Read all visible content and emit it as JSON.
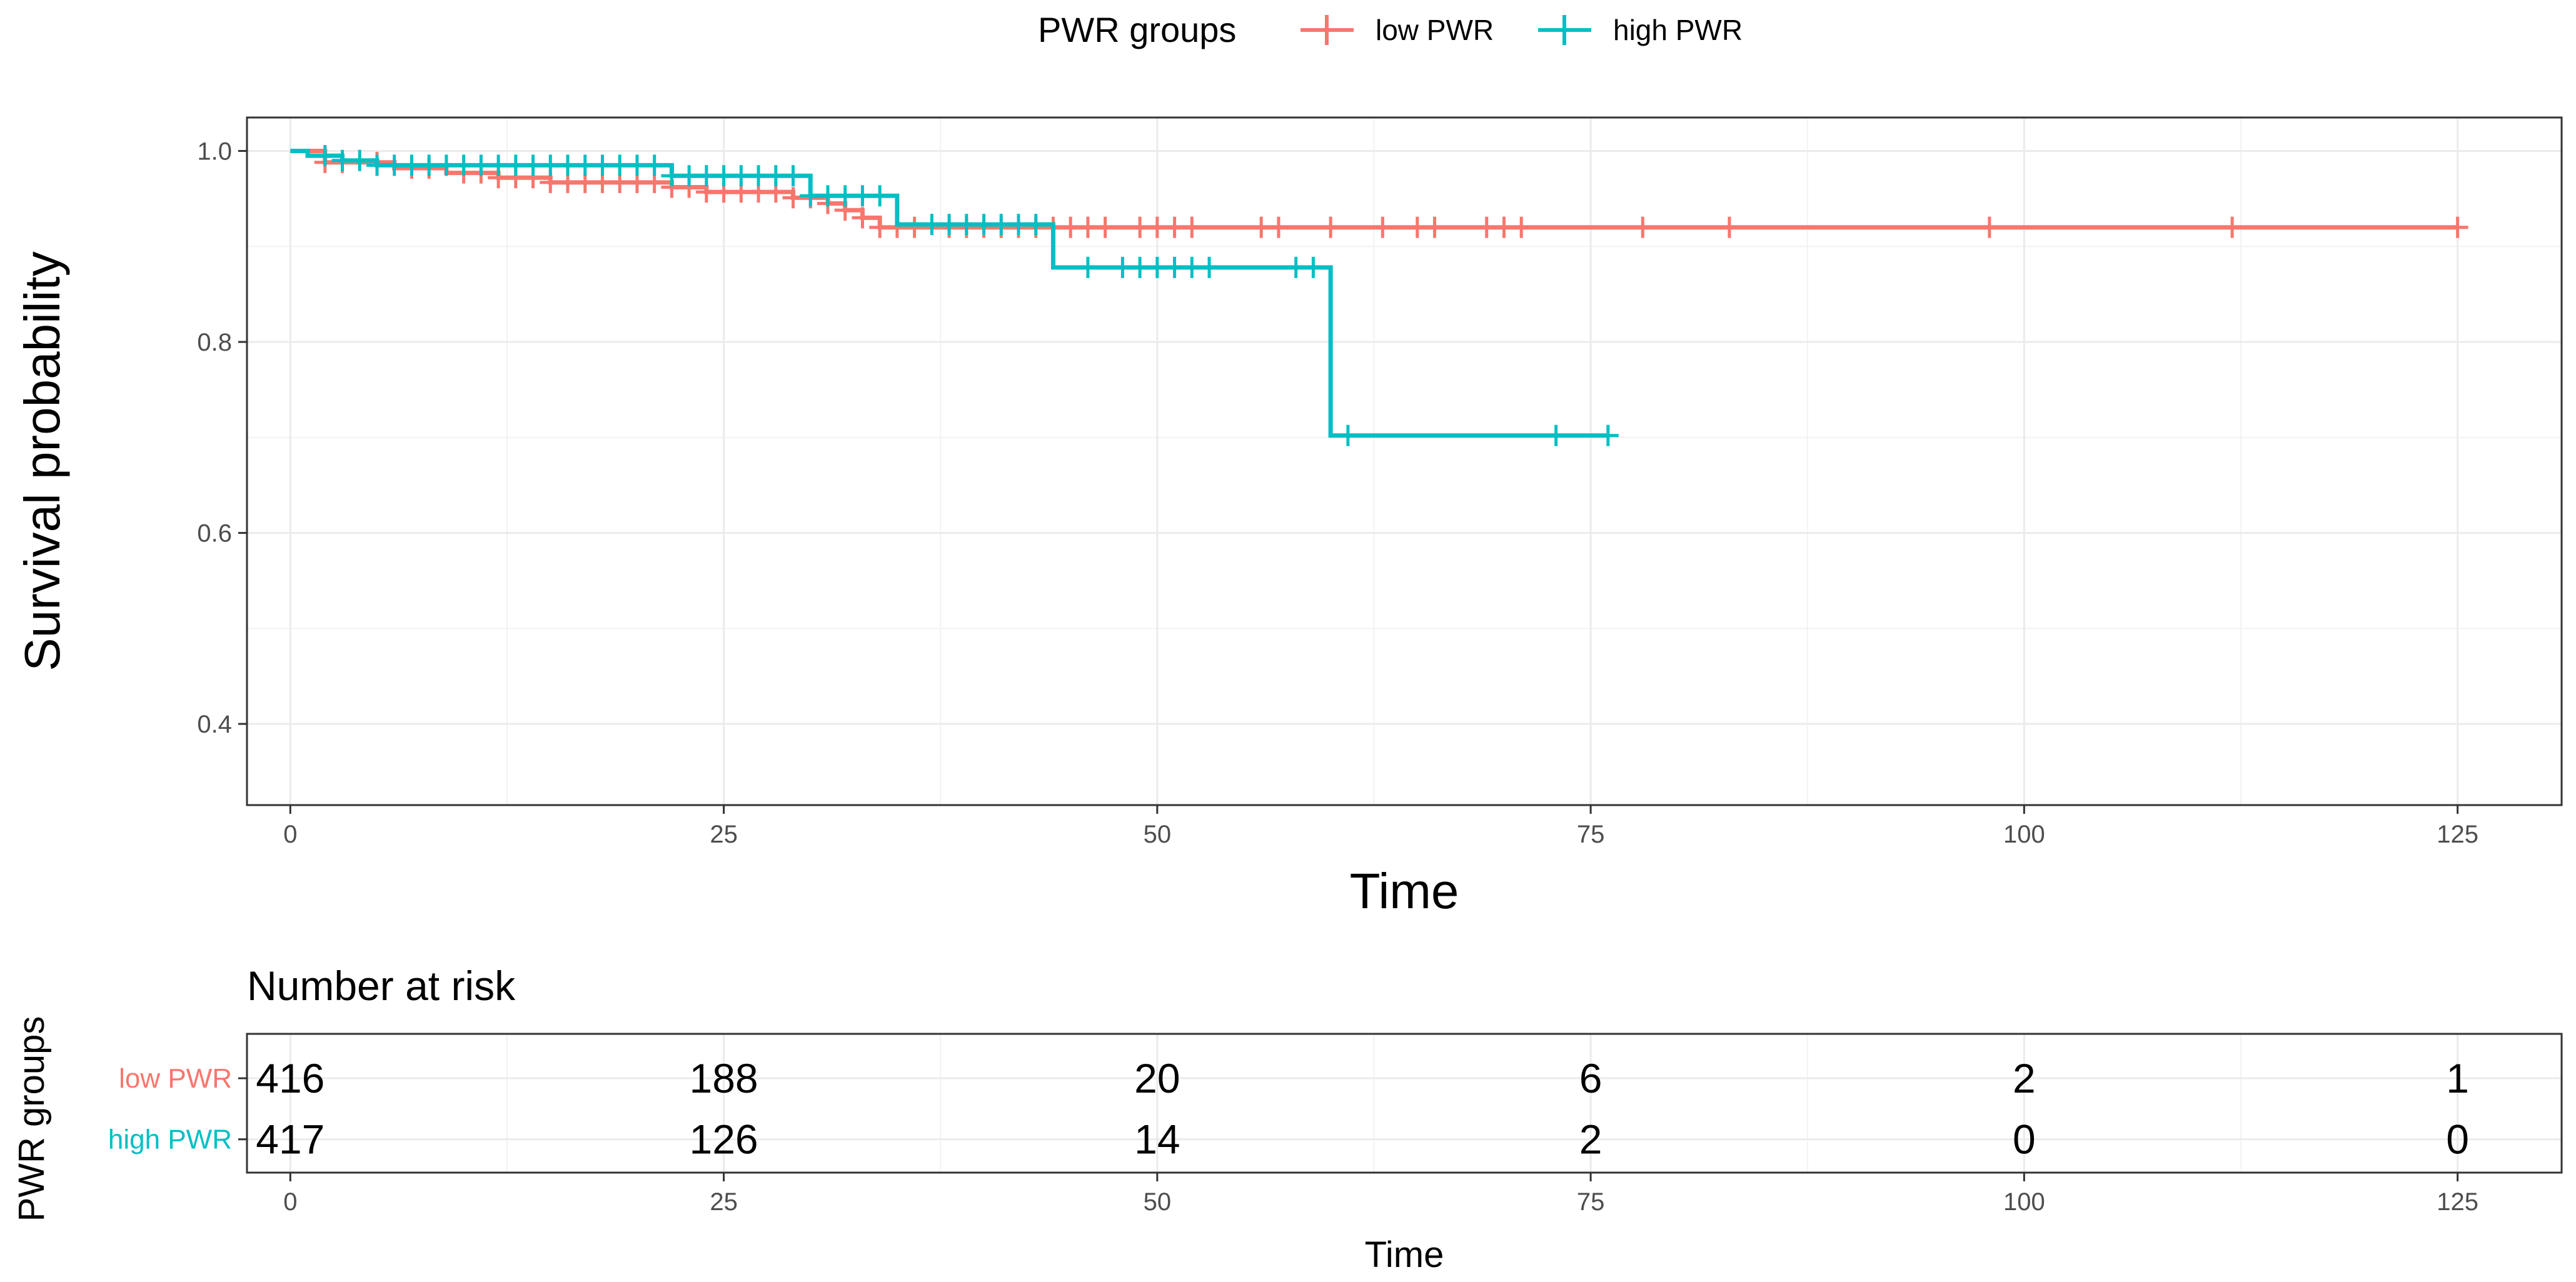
{
  "chart_data": {
    "type": "line",
    "subtype": "kaplan-meier",
    "legend": {
      "title": "PWR groups",
      "position": "top",
      "entries": [
        {
          "label": "low PWR",
          "color": "#F8766D"
        },
        {
          "label": "high PWR",
          "color": "#00BFC4"
        }
      ]
    },
    "xlabel": "Time",
    "ylabel": "Survival probability",
    "xlim": [
      -2.5,
      131
    ],
    "ylim": [
      0.315,
      1.035
    ],
    "xticks": [
      0,
      25,
      50,
      75,
      100,
      125
    ],
    "xtick_labels": [
      "0",
      "25",
      "50",
      "75",
      "100",
      "125"
    ],
    "yticks": [
      0.4,
      0.6,
      0.8,
      1.0
    ],
    "ytick_labels": [
      "0.4",
      "0.6",
      "0.8",
      "1.0"
    ],
    "grid": true,
    "series": [
      {
        "name": "low PWR",
        "color": "#F8766D",
        "steps": [
          {
            "t": 0,
            "s": 1.0
          },
          {
            "t": 2,
            "s": 0.988
          },
          {
            "t": 6,
            "s": 0.982
          },
          {
            "t": 9,
            "s": 0.977
          },
          {
            "t": 12,
            "s": 0.972
          },
          {
            "t": 15,
            "s": 0.967
          },
          {
            "t": 22,
            "s": 0.962
          },
          {
            "t": 24,
            "s": 0.957
          },
          {
            "t": 29,
            "s": 0.951
          },
          {
            "t": 31,
            "s": 0.945
          },
          {
            "t": 32,
            "s": 0.938
          },
          {
            "t": 33,
            "s": 0.93
          },
          {
            "t": 34,
            "s": 0.92
          },
          {
            "t": 125,
            "s": 0.92
          }
        ],
        "censor_times": [
          2,
          3,
          5,
          7,
          8,
          10,
          11,
          12,
          13,
          14,
          15,
          16,
          17,
          18,
          19,
          20,
          21,
          22,
          23,
          24,
          25,
          26,
          27,
          28,
          29,
          30,
          31,
          32,
          33,
          34,
          35,
          36,
          38,
          39,
          40,
          41,
          42,
          43,
          44,
          45,
          46,
          47,
          49,
          50,
          51,
          52,
          56,
          57,
          60,
          63,
          65,
          66,
          69,
          70,
          71,
          78,
          83,
          98,
          112,
          125
        ]
      },
      {
        "name": "high PWR",
        "color": "#00BFC4",
        "steps": [
          {
            "t": 0,
            "s": 1.0
          },
          {
            "t": 1,
            "s": 0.995
          },
          {
            "t": 3,
            "s": 0.99
          },
          {
            "t": 5,
            "s": 0.985
          },
          {
            "t": 22,
            "s": 0.974
          },
          {
            "t": 30,
            "s": 0.953
          },
          {
            "t": 35,
            "s": 0.923
          },
          {
            "t": 44,
            "s": 0.878
          },
          {
            "t": 60,
            "s": 0.702
          },
          {
            "t": 76,
            "s": 0.702
          }
        ],
        "censor_times": [
          2,
          3,
          4,
          5,
          6,
          7,
          8,
          9,
          10,
          11,
          12,
          13,
          14,
          15,
          16,
          17,
          18,
          19,
          20,
          21,
          22,
          23,
          24,
          25,
          26,
          27,
          28,
          29,
          30,
          31,
          32,
          33,
          34,
          37,
          38,
          39,
          40,
          41,
          42,
          43,
          46,
          48,
          49,
          50,
          51,
          52,
          53,
          58,
          59,
          61,
          73,
          76
        ]
      }
    ],
    "risk_table": {
      "title": "Number at risk",
      "ylabel": "PWR groups",
      "xlabel": "Time",
      "times": [
        0,
        25,
        50,
        75,
        100,
        125
      ],
      "rows": [
        {
          "label": "low PWR",
          "color": "#F8766D",
          "values": [
            "416",
            "188",
            "20",
            "6",
            "2",
            "1"
          ]
        },
        {
          "label": "high PWR",
          "color": "#00BFC4",
          "values": [
            "417",
            "126",
            "14",
            "2",
            "0",
            "0"
          ]
        }
      ]
    }
  }
}
